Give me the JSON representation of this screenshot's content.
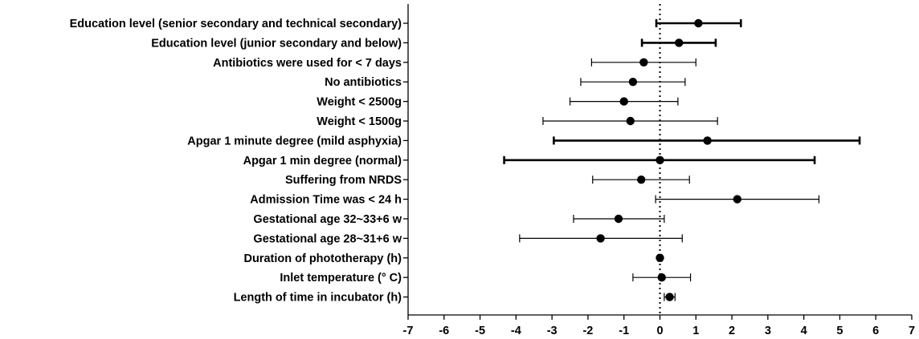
{
  "chart_data": {
    "type": "forest",
    "title": "",
    "xlabel": "",
    "ylabel": "",
    "xlim": [
      -7,
      7
    ],
    "x_ticks": [
      "-7",
      "-6",
      "-5",
      "-4",
      "-3",
      "-2",
      "-1",
      "0",
      "1",
      "2",
      "3",
      "4",
      "5",
      "6",
      "7"
    ],
    "reference_line": 0,
    "rows": [
      {
        "label": "Education level (senior secondary and technical secondary)",
        "estimate": 1.07,
        "lower": -0.1,
        "upper": 2.25,
        "significant": true
      },
      {
        "label": "Education level (junior secondary and below)",
        "estimate": 0.53,
        "lower": -0.5,
        "upper": 1.55,
        "significant": true
      },
      {
        "label": "Antibiotics were used for < 7 days",
        "estimate": -0.45,
        "lower": -1.9,
        "upper": 1.0,
        "significant": false
      },
      {
        "label": "No antibiotics",
        "estimate": -0.75,
        "lower": -2.2,
        "upper": 0.7,
        "significant": false
      },
      {
        "label": "Weight < 2500g",
        "estimate": -1.0,
        "lower": -2.5,
        "upper": 0.5,
        "significant": false
      },
      {
        "label": "Weight < 1500g",
        "estimate": -0.82,
        "lower": -3.25,
        "upper": 1.6,
        "significant": false
      },
      {
        "label": "Apgar 1 minute degree (mild asphyxia)",
        "estimate": 1.32,
        "lower": -2.95,
        "upper": 5.55,
        "significant": true
      },
      {
        "label": "Apgar 1 min degree (normal)",
        "estimate": 0.0,
        "lower": -4.33,
        "upper": 4.3,
        "significant": true
      },
      {
        "label": "Suffering from NRDS",
        "estimate": -0.52,
        "lower": -1.87,
        "upper": 0.82,
        "significant": false
      },
      {
        "label": "Admission Time was < 24 h",
        "estimate": 2.15,
        "lower": -0.12,
        "upper": 4.42,
        "significant": false
      },
      {
        "label": "Gestational age 32~33+6 w",
        "estimate": -1.15,
        "lower": -2.4,
        "upper": 0.12,
        "significant": false
      },
      {
        "label": "Gestational age 28~31+6 w",
        "estimate": -1.65,
        "lower": -3.9,
        "upper": 0.62,
        "significant": false
      },
      {
        "label": "Duration of phototherapy (h)",
        "estimate": 0.0,
        "lower": -0.05,
        "upper": 0.05,
        "significant": false
      },
      {
        "label": "Inlet temperature (° C)",
        "estimate": 0.05,
        "lower": -0.75,
        "upper": 0.85,
        "significant": false
      },
      {
        "label": "Length of time in incubator (h)",
        "estimate": 0.27,
        "lower": 0.12,
        "upper": 0.42,
        "significant": false
      }
    ]
  }
}
